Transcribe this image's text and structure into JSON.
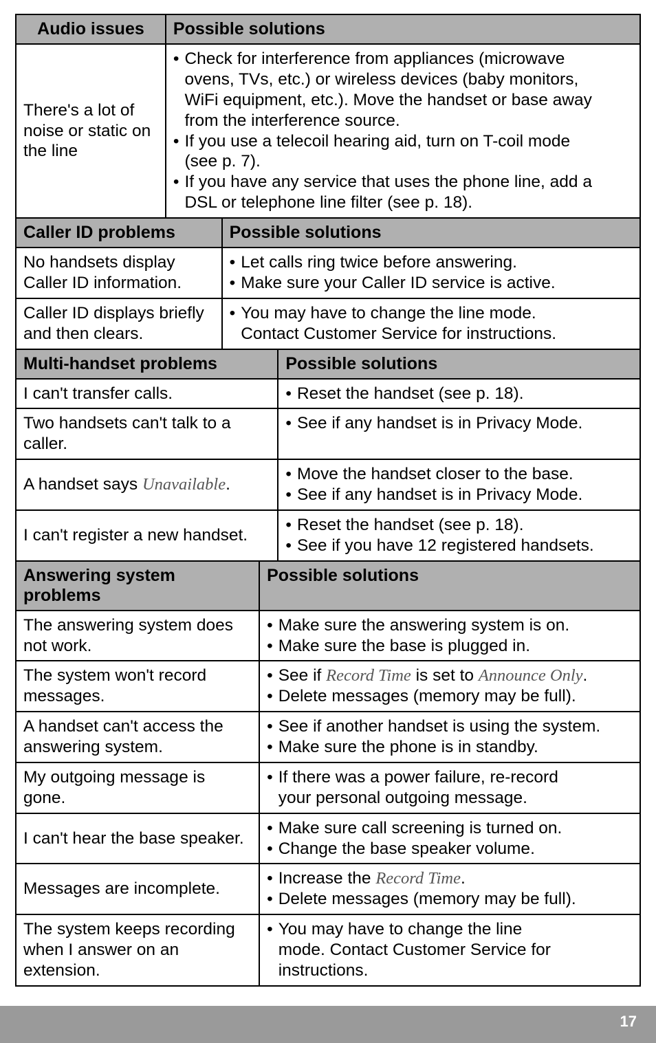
{
  "audio": {
    "header_left": "Audio issues",
    "header_right": "Possible solutions",
    "row_label": "There's a lot of noise or static on the line",
    "b1_l1": "Check for interference from appliances (microwave",
    "b1_l2": "ovens, TVs, etc.) or wireless devices (baby monitors,",
    "b1_l3": "WiFi equipment, etc.). Move the handset or base away",
    "b1_l4": "from the interference source.",
    "b2_l1": "If you use a telecoil hearing aid, turn on T-coil mode",
    "b2_l2": "(see p. 7).",
    "b3_l1": "If you have any service that uses the phone line, add a",
    "b3_l2": "DSL or telephone line filter (see p. 18)."
  },
  "caller": {
    "header_left": "Caller ID problems",
    "header_right": "Possible solutions",
    "r1_label_l1": "No handsets display",
    "r1_label_l2": "Caller ID information.",
    "r1_b1": "Let calls ring twice before answering.",
    "r1_b2": "Make sure your Caller ID service is active.",
    "r2_label_l1": "Caller ID displays briefly",
    "r2_label_l2": "and then clears.",
    "r2_b1_l1": "You may have to change the line mode.",
    "r2_b1_l2": "Contact Customer Service for instructions."
  },
  "multi": {
    "header_left": "Multi-handset problems",
    "header_right": "Possible solutions",
    "r1_label": "I can't transfer calls.",
    "r1_b1": "Reset the handset (see p. 18).",
    "r2_label": "Two handsets can't talk to a caller.",
    "r2_b1": "See if any handset is in Privacy Mode.",
    "r3_label_pre": "A handset says ",
    "r3_label_it": "Unavailable",
    "r3_b1": "Move the handset closer to the base.",
    "r3_b2": "See if any handset is in Privacy Mode.",
    "r4_label": "I can't register a new handset.",
    "r4_b1": "Reset the handset (see p. 18).",
    "r4_b2": "See if you have 12 registered handsets."
  },
  "ans": {
    "header_left": "Answering system problems",
    "header_right": "Possible solutions",
    "r1_label_l1": "The answering system does",
    "r1_label_l2": "not work.",
    "r1_b1": "Make sure the answering system is on.",
    "r1_b2": "Make sure the base is plugged in.",
    "r2_label_l1": "The system won't record",
    "r2_label_l2": "messages.",
    "r2_b1_pre": "See if ",
    "r2_b1_it1": "Record Time",
    "r2_b1_mid": " is set to ",
    "r2_b1_it2": "Announce Only",
    "r2_b2": "Delete messages (memory may be full).",
    "r3_label_l1": "A handset can't access the",
    "r3_label_l2": "answering system.",
    "r3_b1": "See if another handset is using the system.",
    "r3_b2": "Make sure the phone is in standby.",
    "r4_label": "My outgoing message is gone.",
    "r4_b1_l1": "If there was a power failure, re-record",
    "r4_b1_l2": "your personal outgoing message.",
    "r5_label": "I can't hear the base speaker.",
    "r5_b1": "Make sure call screening is turned on.",
    "r5_b2": "Change the base speaker volume.",
    "r6_label": "Messages are incomplete.",
    "r6_b1_pre": "Increase the ",
    "r6_b1_it": "Record Time",
    "r6_b2": "Delete messages (memory may be full).",
    "r7_label_l1": "The system keeps recording",
    "r7_label_l2": "when I answer on an",
    "r7_label_l3": "extension.",
    "r7_b1_l1": "You may have to change the line",
    "r7_b1_l2": "mode. Contact Customer Service for",
    "r7_b1_l3": "instructions."
  },
  "page_number": "17"
}
